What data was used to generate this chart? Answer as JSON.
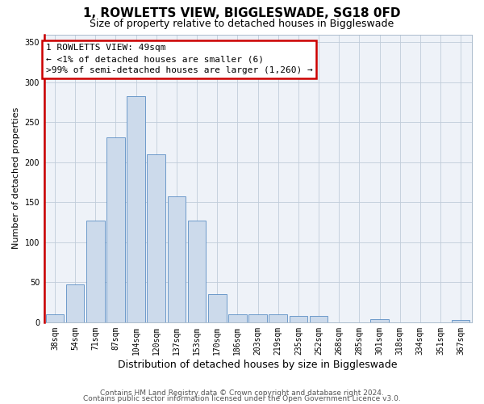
{
  "title": "1, ROWLETTS VIEW, BIGGLESWADE, SG18 0FD",
  "subtitle": "Size of property relative to detached houses in Biggleswade",
  "xlabel": "Distribution of detached houses by size in Biggleswade",
  "ylabel": "Number of detached properties",
  "bar_color": "#ccdaeb",
  "bar_edge_color": "#5b8ec4",
  "categories": [
    "38sqm",
    "54sqm",
    "71sqm",
    "87sqm",
    "104sqm",
    "120sqm",
    "137sqm",
    "153sqm",
    "170sqm",
    "186sqm",
    "203sqm",
    "219sqm",
    "235sqm",
    "252sqm",
    "268sqm",
    "285sqm",
    "301sqm",
    "318sqm",
    "334sqm",
    "351sqm",
    "367sqm"
  ],
  "values": [
    10,
    47,
    127,
    231,
    283,
    210,
    157,
    127,
    35,
    10,
    10,
    10,
    8,
    8,
    0,
    0,
    4,
    0,
    0,
    0,
    3
  ],
  "highlight_color": "#cc0000",
  "ylim": [
    0,
    360
  ],
  "yticks": [
    0,
    50,
    100,
    150,
    200,
    250,
    300,
    350
  ],
  "annotation_line1": "1 ROWLETTS VIEW: 49sqm",
  "annotation_line2": "← <1% of detached houses are smaller (6)",
  "annotation_line3": ">99% of semi-detached houses are larger (1,260) →",
  "footer_line1": "Contains HM Land Registry data © Crown copyright and database right 2024.",
  "footer_line2": "Contains public sector information licensed under the Open Government Licence v3.0.",
  "bg_color": "#eef2f8",
  "grid_color": "#c0ccda",
  "title_fontsize": 11,
  "subtitle_fontsize": 9,
  "tick_fontsize": 7,
  "ylabel_fontsize": 8,
  "xlabel_fontsize": 9,
  "annotation_fontsize": 8,
  "footer_fontsize": 6.5
}
